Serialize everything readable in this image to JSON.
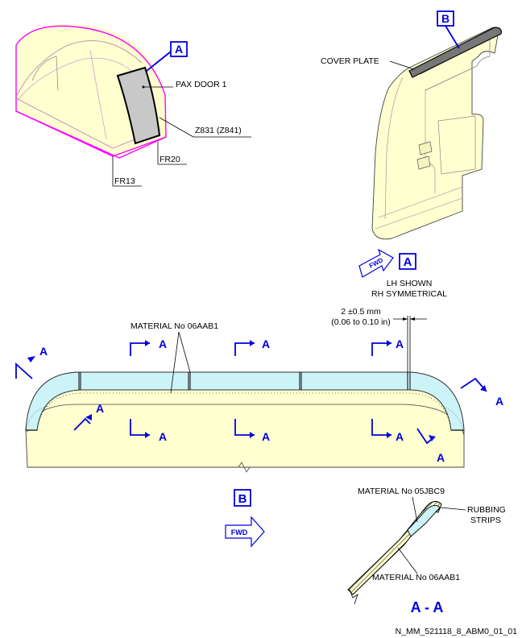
{
  "labels": {
    "pax_door": "PAX DOOR 1",
    "zone": "Z831 (Z841)",
    "fr20": "FR20",
    "fr13": "FR13",
    "cover_plate": "COVER PLATE",
    "lh_shown": "LH SHOWN",
    "rh_symmetrical": "RH SYMMETRICAL",
    "gap_mm": "2 ±0.5 mm",
    "gap_in": "(0.06 to 0.10 in)",
    "material_06aab1_top": "MATERIAL No 06AAB1",
    "material_05jbc9": "MATERIAL No 05JBC9",
    "rubbing_strips_1": "RUBBING",
    "rubbing_strips_2": "STRIPS",
    "material_06aab1_bottom": "MATERIAL No 06AAB1",
    "section_title": "A - A",
    "fwd": "FWD",
    "figure_id": "N_MM_521118_8_ABM0_01_01"
  },
  "callouts": {
    "view_a": "A",
    "view_b": "B",
    "section_a": "A"
  },
  "colors": {
    "accent": "#0000dd",
    "part_fill": "#ffffd0",
    "strip_fill": "#ccf4f8",
    "outline_magenta": "#ff00ff",
    "door_gray": "#c8c8c8"
  }
}
